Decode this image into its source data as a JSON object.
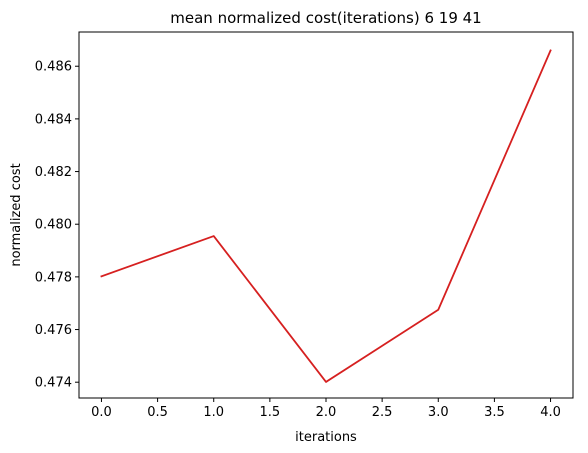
{
  "chart_data": {
    "type": "line",
    "title": "mean normalized cost(iterations) 6 19 41",
    "xlabel": "iterations",
    "ylabel": "normalized cost",
    "xlim": [
      -0.2,
      4.2
    ],
    "ylim": [
      0.4734,
      0.4873
    ],
    "xticks": [
      0.0,
      0.5,
      1.0,
      1.5,
      2.0,
      2.5,
      3.0,
      3.5,
      4.0
    ],
    "xtick_labels": [
      "0.0",
      "0.5",
      "1.0",
      "1.5",
      "2.0",
      "2.5",
      "3.0",
      "3.5",
      "4.0"
    ],
    "yticks": [
      0.474,
      0.476,
      0.478,
      0.48,
      0.482,
      0.484,
      0.486
    ],
    "ytick_labels": [
      "0.474",
      "0.476",
      "0.478",
      "0.480",
      "0.482",
      "0.484",
      "0.486"
    ],
    "grid": false,
    "series": [
      {
        "name": "mean normalized cost",
        "color": "#d62020",
        "x": [
          0,
          1,
          2,
          3,
          4
        ],
        "y": [
          0.47802,
          0.47955,
          0.47401,
          0.47675,
          0.4866
        ]
      }
    ]
  }
}
